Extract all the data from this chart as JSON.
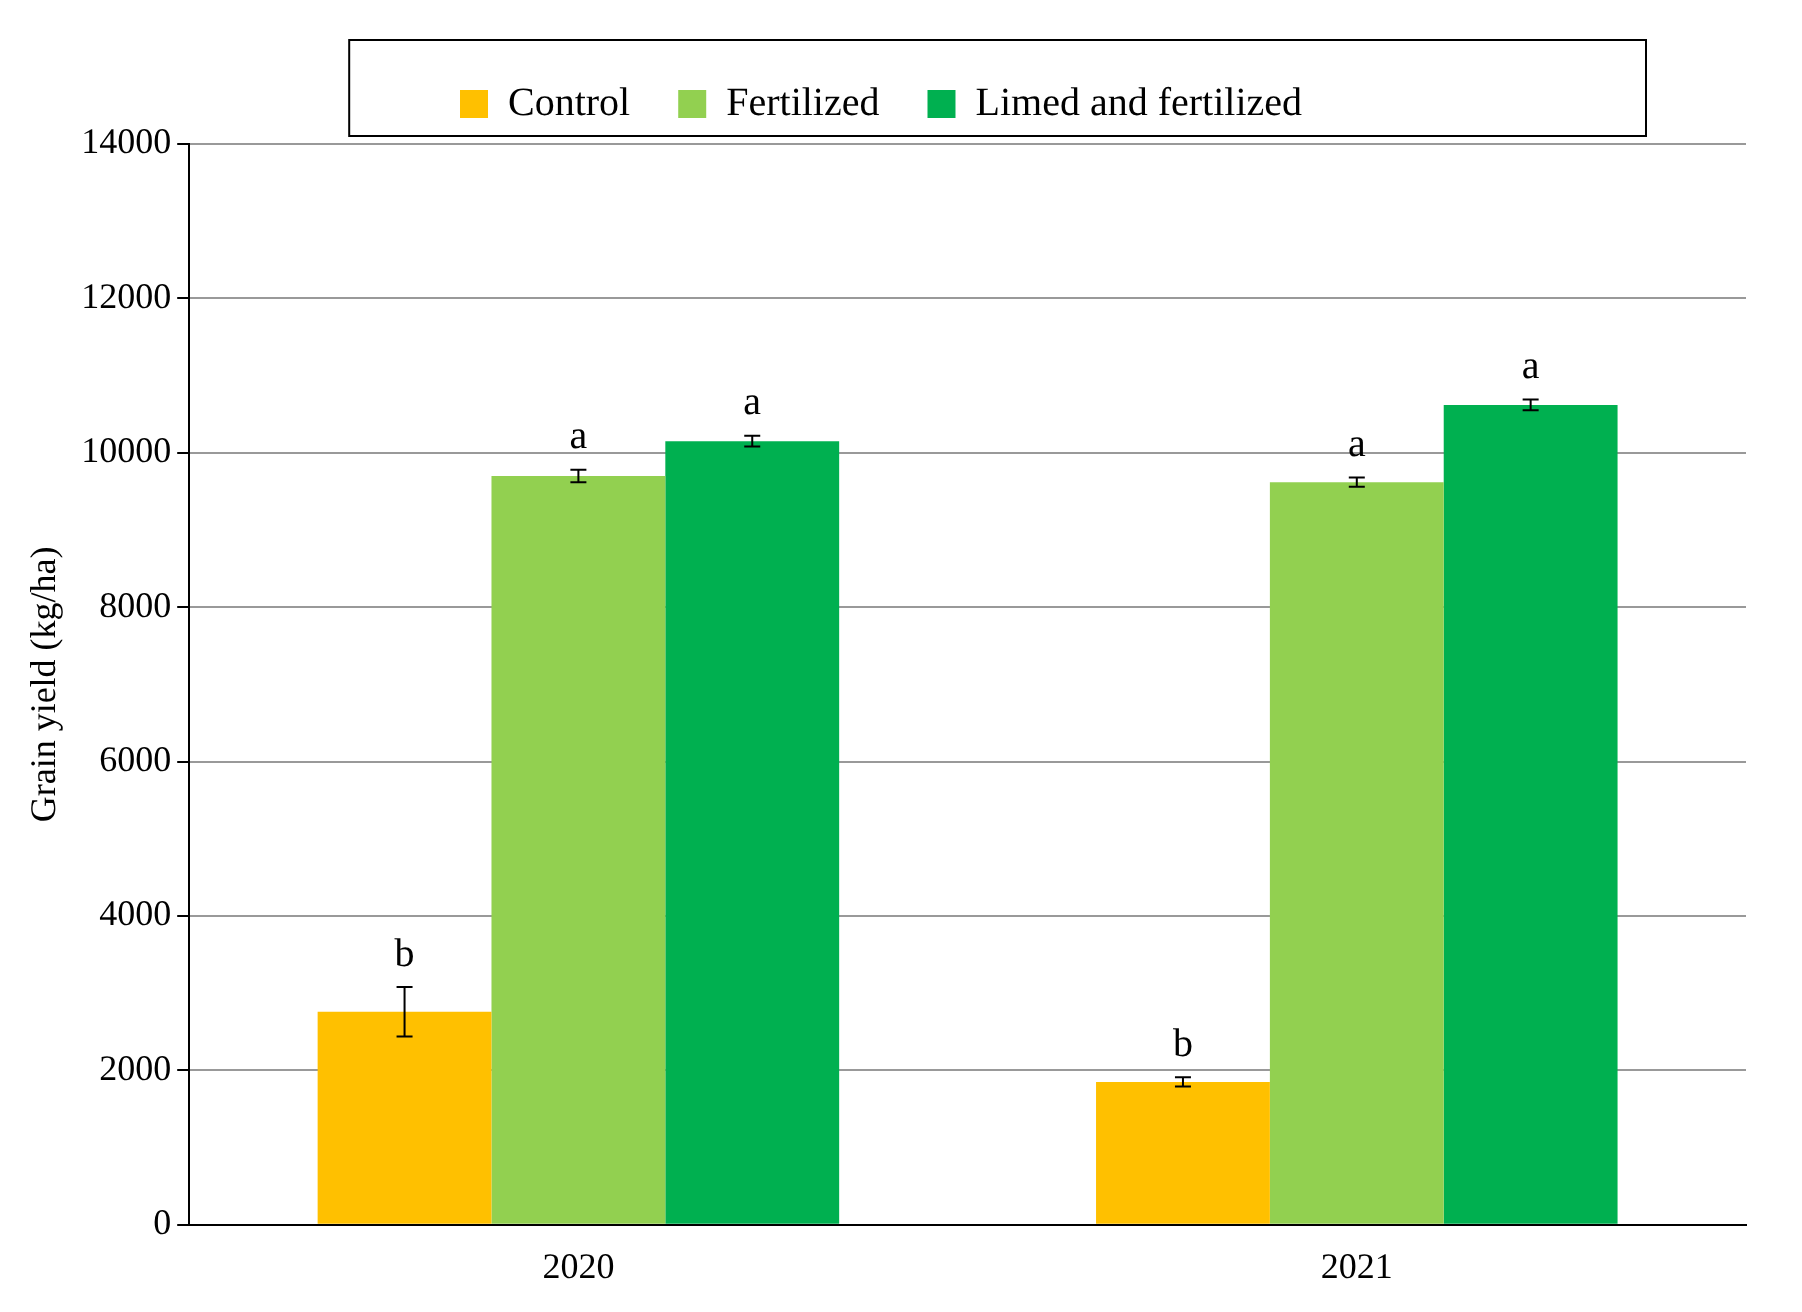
{
  "chart_data": {
    "type": "bar",
    "ylabel": "Grain yield (kg/ha)",
    "categories": [
      "2020",
      "2021"
    ],
    "series": [
      {
        "name": "Control",
        "color": "#ffc000",
        "values": [
          2760,
          1850
        ],
        "errors": [
          320,
          60
        ]
      },
      {
        "name": "Fertilized",
        "color": "#92d050",
        "values": [
          9700,
          9620
        ],
        "errors": [
          80,
          60
        ]
      },
      {
        "name": "Limed and fertilized",
        "color": "#00b050",
        "values": [
          10150,
          10620
        ],
        "errors": [
          70,
          70
        ]
      }
    ],
    "ylim": [
      0,
      14000
    ],
    "yticks": [
      0,
      2000,
      4000,
      6000,
      8000,
      10000,
      12000,
      14000
    ],
    "grid": "y",
    "legend": "top",
    "annotations": [
      "b",
      "a",
      "a",
      "b",
      "a",
      "a"
    ]
  }
}
